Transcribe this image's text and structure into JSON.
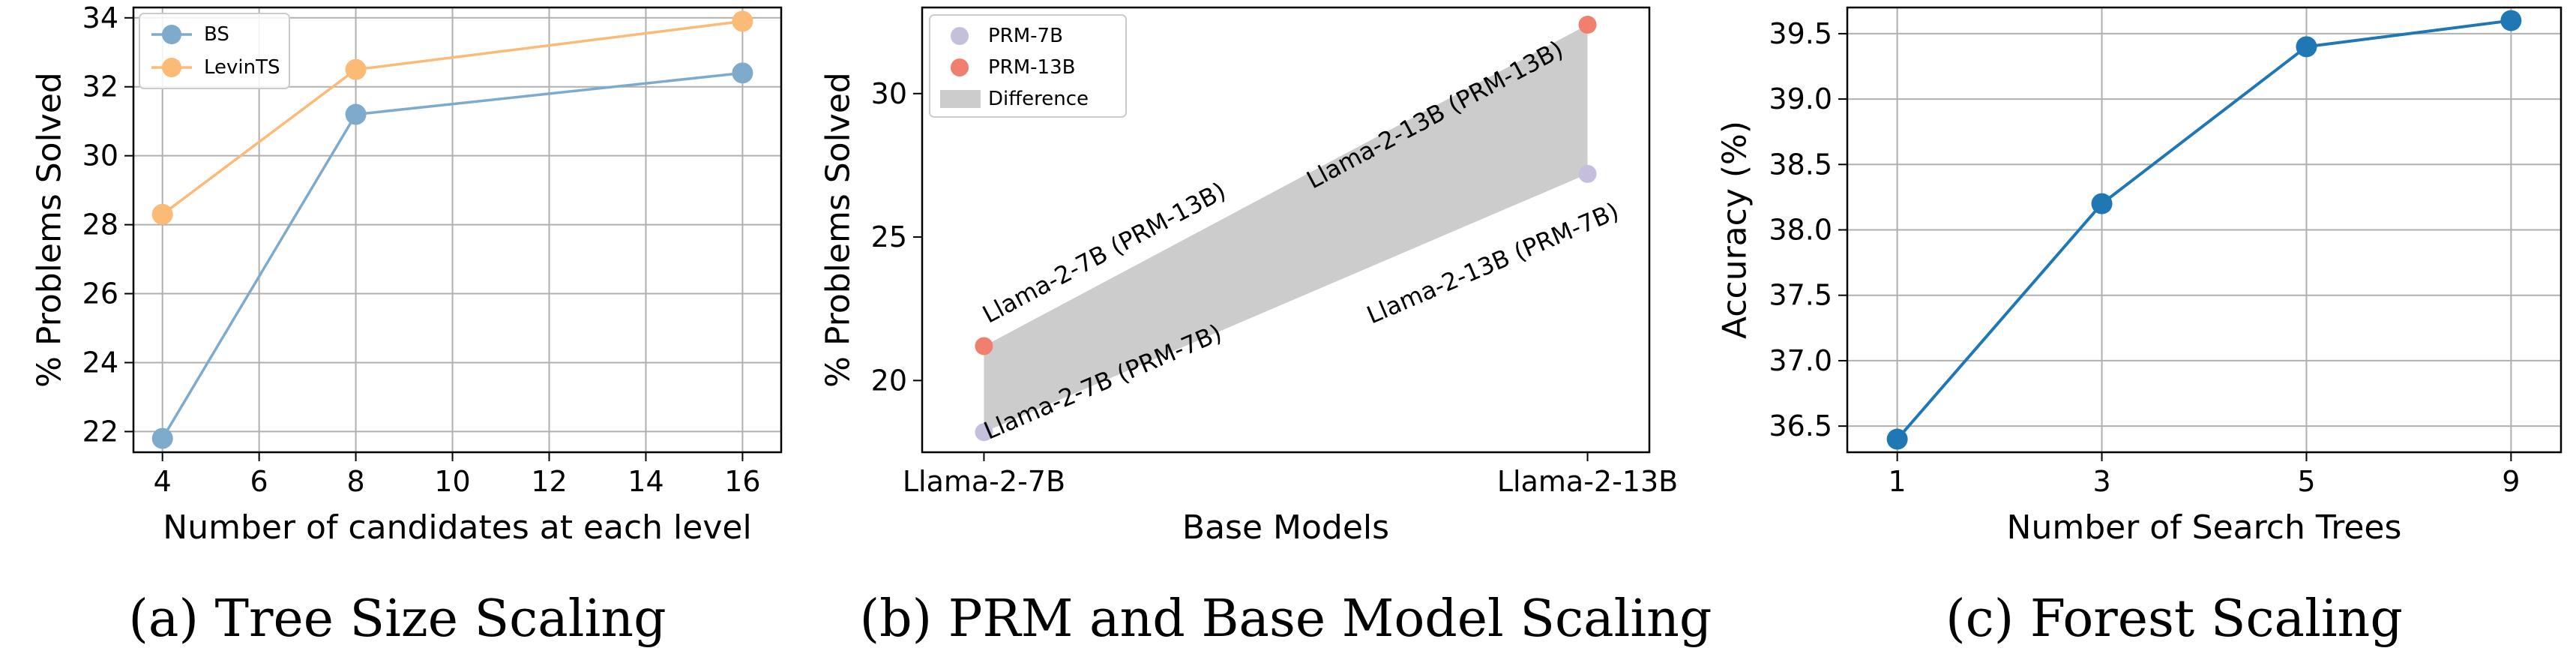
{
  "chart_data": [
    {
      "type": "line",
      "caption": "(a) Tree Size Scaling",
      "xlabel": "Number of candidates at each level",
      "ylabel": "% Problems Solved",
      "xlim": [
        3.4,
        16.8
      ],
      "ylim": [
        21.4,
        34.3
      ],
      "xticks": [
        4,
        6,
        8,
        10,
        12,
        14,
        16
      ],
      "yticks": [
        22,
        24,
        26,
        28,
        30,
        32,
        34
      ],
      "grid": true,
      "legend": "top-left",
      "x": [
        4,
        8,
        16
      ],
      "series": [
        {
          "name": "BS",
          "color": "#7eaacb",
          "values": [
            21.8,
            31.2,
            32.4
          ]
        },
        {
          "name": "LevinTS",
          "color": "#fbba75",
          "values": [
            28.3,
            32.5,
            33.9
          ]
        }
      ]
    },
    {
      "type": "scatter",
      "caption": "(b) PRM and Base Model Scaling",
      "xlabel": "Base Models",
      "ylabel": "% Problems Solved",
      "categories": [
        "Llama-2-7B",
        "Llama-2-13B"
      ],
      "ylim": [
        17.5,
        33.0
      ],
      "yticks": [
        20,
        25,
        30
      ],
      "grid": false,
      "legend": "top-left",
      "fill_label": "Difference",
      "fill_color": "#cccccc",
      "series": [
        {
          "name": "PRM-7B",
          "color": "#c5bfdd",
          "values": [
            18.2,
            27.2
          ],
          "point_labels": [
            "Llama-2-7B (PRM-7B)",
            "Llama-2-13B (PRM-7B)"
          ]
        },
        {
          "name": "PRM-13B",
          "color": "#f07f6e",
          "values": [
            21.2,
            32.4
          ],
          "point_labels": [
            "Llama-2-7B (PRM-13B)",
            "Llama-2-13B (PRM-13B)"
          ]
        }
      ]
    },
    {
      "type": "line",
      "caption": "(c) Forest Scaling",
      "xlabel": "Number of Search Trees",
      "ylabel": "Accuracy (%)",
      "categories": [
        "1",
        "3",
        "5",
        "9"
      ],
      "ylim": [
        36.3,
        39.7
      ],
      "yticks": [
        36.5,
        37.0,
        37.5,
        38.0,
        38.5,
        39.0,
        39.5
      ],
      "grid": true,
      "series": [
        {
          "name": "",
          "color": "#1f77b4",
          "values": [
            36.4,
            38.2,
            39.4,
            39.6
          ]
        }
      ]
    }
  ]
}
